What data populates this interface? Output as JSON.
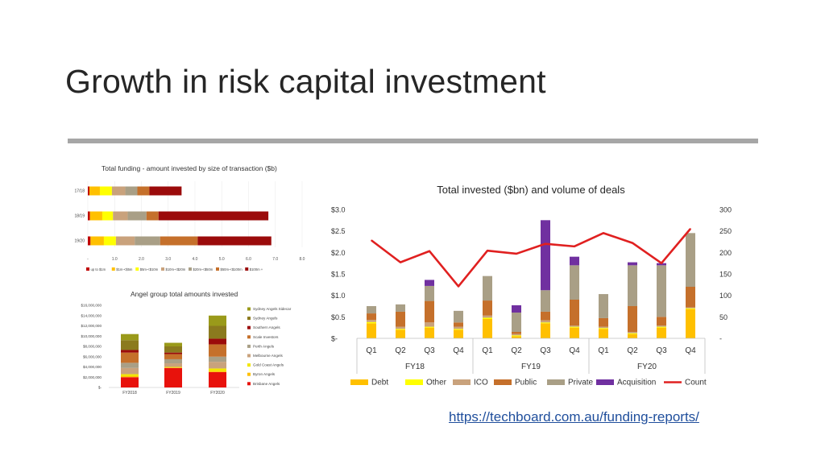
{
  "slide": {
    "title": "Growth in risk capital investment",
    "link": "https://techboard.com.au/funding-reports/"
  },
  "chart_data": [
    {
      "type": "bar",
      "orientation": "horizontal",
      "stacked": true,
      "title": "Total funding - amount invested by size of transaction ($b)",
      "categories": [
        "17/18",
        "18/19",
        "19/20"
      ],
      "x_ticks": [
        "-",
        "1.0",
        "2.0",
        "3.0",
        "4.0",
        "5.0",
        "6.0",
        "7.0",
        "8.0"
      ],
      "xlim": [
        0,
        8
      ],
      "legend_position": "bottom",
      "series": [
        {
          "name": "up to $1m",
          "color": "#c00000",
          "values": [
            0.06,
            0.08,
            0.1
          ]
        },
        {
          "name": "$1m-<$5m",
          "color": "#ffc000",
          "values": [
            0.39,
            0.46,
            0.5
          ]
        },
        {
          "name": "$5m-<$10m",
          "color": "#ffff00",
          "values": [
            0.45,
            0.4,
            0.45
          ]
        },
        {
          "name": "$10m-<$20m",
          "color": "#c9a27c",
          "values": [
            0.5,
            0.55,
            0.7
          ]
        },
        {
          "name": "$20m-<$50m",
          "color": "#a99f86",
          "values": [
            0.45,
            0.7,
            0.95
          ]
        },
        {
          "name": "$50m-<$100m",
          "color": "#c5702b",
          "values": [
            0.45,
            0.45,
            1.4
          ]
        },
        {
          "name": "$100m +",
          "color": "#9b0b0b",
          "values": [
            1.2,
            4.1,
            2.75
          ]
        }
      ]
    },
    {
      "type": "bar",
      "stacked": true,
      "title": "Angel group total amounts invested",
      "categories": [
        "FY2018",
        "FY2019",
        "FY2020"
      ],
      "y_ticks": [
        "$16,000,000",
        "$14,000,000",
        "$12,000,000",
        "$10,000,000",
        "$8,000,000",
        "$6,000,000",
        "$4,000,000",
        "$2,000,000",
        "$-"
      ],
      "ylim": [
        0,
        16000000
      ],
      "legend_position": "right",
      "series": [
        {
          "name": "Brisbane Angels",
          "color": "#e8120c",
          "values": [
            2000000,
            3800000,
            3000000
          ]
        },
        {
          "name": "Byron Angels",
          "color": "#ffc000",
          "values": [
            200000,
            100000,
            200000
          ]
        },
        {
          "name": "Gold Coast Angels",
          "color": "#f2e600",
          "values": [
            400000,
            100000,
            500000
          ]
        },
        {
          "name": "Melbourne Angels",
          "color": "#c9a27c",
          "values": [
            1200000,
            700000,
            1300000
          ]
        },
        {
          "name": "Perth Angels",
          "color": "#a99f86",
          "values": [
            1000000,
            800000,
            1000000
          ]
        },
        {
          "name": "Scale Investors",
          "color": "#c5702b",
          "values": [
            2000000,
            1000000,
            2400000
          ]
        },
        {
          "name": "Southern Angels",
          "color": "#9b0b0b",
          "values": [
            500000,
            300000,
            1100000
          ]
        },
        {
          "name": "Sydney Angels",
          "color": "#8b7a1e",
          "values": [
            1900000,
            1200000,
            2500000
          ]
        },
        {
          "name": "Sydney Angels Sidecar",
          "color": "#9a9a1a",
          "values": [
            1200000,
            700000,
            2000000
          ]
        }
      ]
    },
    {
      "type": "bar",
      "stacked": true,
      "title": "Total invested ($bn) and volume of deals",
      "categories": [
        "Q1",
        "Q2",
        "Q3",
        "Q4",
        "Q1",
        "Q2",
        "Q3",
        "Q4",
        "Q1",
        "Q2",
        "Q3",
        "Q4"
      ],
      "groups": [
        {
          "label": "FY18",
          "span": 4
        },
        {
          "label": "FY19",
          "span": 4
        },
        {
          "label": "FY20",
          "span": 4
        }
      ],
      "y_ticks": [
        "$3.0",
        "$2.5",
        "$2.0",
        "$1.5",
        "$1.0",
        "$0.5",
        "$-"
      ],
      "y2_ticks": [
        "300",
        "250",
        "200",
        "150",
        "100",
        "50",
        "-"
      ],
      "ylim": [
        0,
        3.0
      ],
      "y2lim": [
        0,
        300
      ],
      "legend_position": "bottom",
      "series": [
        {
          "name": "Debt",
          "color": "#ffc000",
          "values": [
            0.35,
            0.2,
            0.25,
            0.2,
            0.45,
            0.05,
            0.35,
            0.25,
            0.22,
            0.1,
            0.25,
            0.68
          ]
        },
        {
          "name": "Other",
          "color": "#ffff00",
          "values": [
            0.03,
            0.02,
            0.02,
            0.02,
            0.03,
            0.02,
            0.02,
            0.02,
            0.02,
            0.02,
            0.02,
            0.02
          ]
        },
        {
          "name": "ICO",
          "color": "#c9a27c",
          "values": [
            0.05,
            0.05,
            0.1,
            0.05,
            0.05,
            0.03,
            0.05,
            0.03,
            0.03,
            0.03,
            0.03,
            0.02
          ]
        },
        {
          "name": "Public",
          "color": "#c5702b",
          "values": [
            0.15,
            0.35,
            0.5,
            0.1,
            0.35,
            0.05,
            0.2,
            0.6,
            0.2,
            0.6,
            0.2,
            0.48
          ]
        },
        {
          "name": "Private",
          "color": "#a99f86",
          "values": [
            0.17,
            0.17,
            0.35,
            0.27,
            0.57,
            0.45,
            0.5,
            0.8,
            0.56,
            0.95,
            1.2,
            1.25
          ]
        },
        {
          "name": "Acquisition",
          "color": "#7030a0",
          "values": [
            0,
            0,
            0.14,
            0,
            0,
            0.17,
            1.63,
            0.2,
            0,
            0.07,
            0.05,
            0
          ]
        }
      ],
      "line_series": {
        "name": "Count",
        "color": "#e02020",
        "axis": "secondary",
        "values": [
          228,
          177,
          203,
          121,
          204,
          197,
          220,
          214,
          245,
          222,
          175,
          255
        ]
      }
    }
  ]
}
